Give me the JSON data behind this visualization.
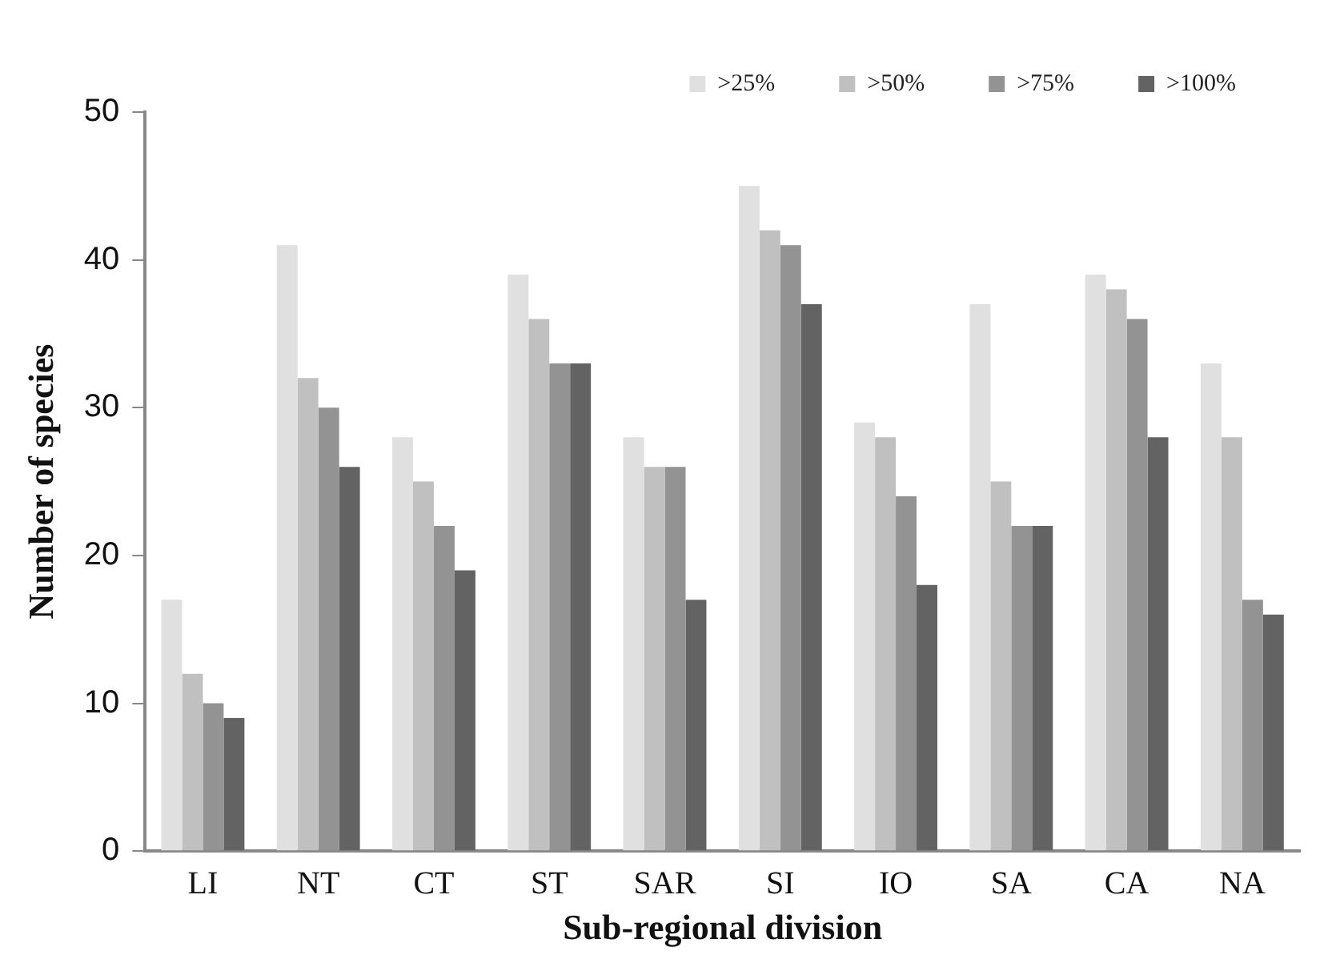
{
  "chart_data": {
    "type": "bar",
    "xlabel": "Sub-regional division",
    "ylabel": "Number of species",
    "categories": [
      "LI",
      "NT",
      "CT",
      "ST",
      "SAR",
      "SI",
      "IO",
      "SA",
      "CA",
      "NA"
    ],
    "series": [
      {
        "name": ">25%",
        "color": "#e0e0e0",
        "values": [
          17,
          41,
          28,
          39,
          28,
          45,
          29,
          37,
          39,
          33
        ]
      },
      {
        "name": ">50%",
        "color": "#c0c0c0",
        "values": [
          12,
          32,
          25,
          36,
          26,
          42,
          28,
          25,
          38,
          28
        ]
      },
      {
        "name": ">75%",
        "color": "#939393",
        "values": [
          10,
          30,
          22,
          33,
          26,
          41,
          24,
          22,
          36,
          17
        ]
      },
      {
        "name": ">100%",
        "color": "#636363",
        "values": [
          9,
          26,
          19,
          33,
          17,
          37,
          18,
          22,
          28,
          16
        ]
      }
    ],
    "ylim": [
      0,
      50
    ],
    "yticks": [
      0,
      10,
      20,
      30,
      40,
      50
    ],
    "grid": false,
    "legend": "top right"
  }
}
